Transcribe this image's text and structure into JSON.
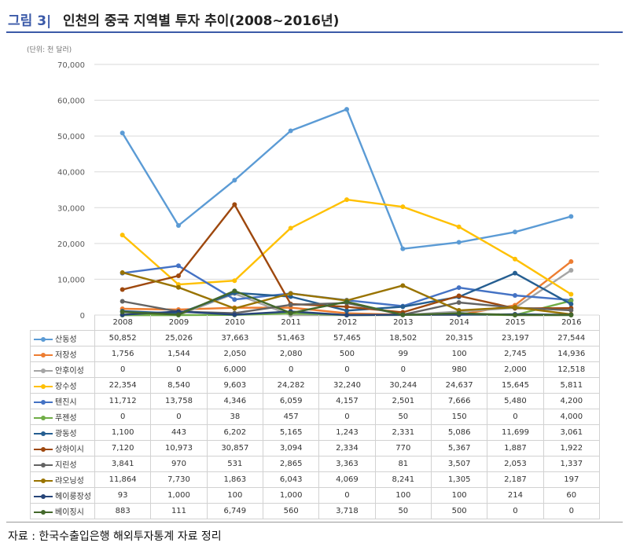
{
  "header": {
    "figure_label": "그림 3|",
    "title": "인천의 중국 지역별 투자 추이(2008~2016년)"
  },
  "unit_label": "(단위: 천 달러)",
  "source_note": "자료 : 한국수출입은행 해외투자통계 자료 정리",
  "chart_data": {
    "type": "line",
    "title": "인천의 중국 지역별 투자 추이(2008~2016년)",
    "ylabel": "(단위: 천 달러)",
    "xlabel": "",
    "ylim": [
      0,
      70000
    ],
    "yticks": [
      0,
      10000,
      20000,
      30000,
      40000,
      50000,
      60000,
      70000
    ],
    "ytick_labels": [
      "0",
      "10,000",
      "20,000",
      "30,000",
      "40,000",
      "50,000",
      "60,000",
      "70,000"
    ],
    "grid": true,
    "legend": "data-table-left",
    "categories": [
      "2008",
      "2009",
      "2010",
      "2011",
      "2012",
      "2013",
      "2014",
      "2015",
      "2016"
    ],
    "series": [
      {
        "name": "산동성",
        "color": "#5b9bd5",
        "values": [
          50852,
          25026,
          37663,
          51463,
          57465,
          18502,
          20315,
          23197,
          27544
        ],
        "labels": [
          "50,852",
          "25,026",
          "37,663",
          "51,463",
          "57,465",
          "18,502",
          "20,315",
          "23,197",
          "27,544"
        ]
      },
      {
        "name": "저장성",
        "color": "#ed7d31",
        "values": [
          1756,
          1544,
          2050,
          2080,
          500,
          99,
          100,
          2745,
          14936
        ],
        "labels": [
          "1,756",
          "1,544",
          "2,050",
          "2,080",
          "500",
          "99",
          "100",
          "2,745",
          "14,936"
        ]
      },
      {
        "name": "안후이성",
        "color": "#a5a5a5",
        "values": [
          0,
          0,
          6000,
          0,
          0,
          0,
          980,
          2000,
          12518
        ],
        "labels": [
          "0",
          "0",
          "6,000",
          "0",
          "0",
          "0",
          "980",
          "2,000",
          "12,518"
        ]
      },
      {
        "name": "장수성",
        "color": "#ffc000",
        "values": [
          22354,
          8540,
          9603,
          24282,
          32240,
          30244,
          24637,
          15645,
          5811
        ],
        "labels": [
          "22,354",
          "8,540",
          "9,603",
          "24,282",
          "32,240",
          "30,244",
          "24,637",
          "15,645",
          "5,811"
        ]
      },
      {
        "name": "텐진시",
        "color": "#4472c4",
        "values": [
          11712,
          13758,
          4346,
          6059,
          4157,
          2501,
          7666,
          5480,
          4200
        ],
        "labels": [
          "11,712",
          "13,758",
          "4,346",
          "6,059",
          "4,157",
          "2,501",
          "7,666",
          "5,480",
          "4,200"
        ]
      },
      {
        "name": "푸젠성",
        "color": "#70ad47",
        "values": [
          0,
          0,
          38,
          457,
          0,
          50,
          150,
          0,
          4000
        ],
        "labels": [
          "0",
          "0",
          "38",
          "457",
          "0",
          "50",
          "150",
          "0",
          "4,000"
        ]
      },
      {
        "name": "광동성",
        "color": "#255e91",
        "values": [
          1100,
          443,
          6202,
          5165,
          1243,
          2331,
          5086,
          11699,
          3061
        ],
        "labels": [
          "1,100",
          "443",
          "6,202",
          "5,165",
          "1,243",
          "2,331",
          "5,086",
          "11,699",
          "3,061"
        ]
      },
      {
        "name": "상하이시",
        "color": "#9e480e",
        "values": [
          7120,
          10973,
          30857,
          3094,
          2334,
          770,
          5367,
          1887,
          1922
        ],
        "labels": [
          "7,120",
          "10,973",
          "30,857",
          "3,094",
          "2,334",
          "770",
          "5,367",
          "1,887",
          "1,922"
        ]
      },
      {
        "name": "지린성",
        "color": "#636363",
        "values": [
          3841,
          970,
          531,
          2865,
          3363,
          81,
          3507,
          2053,
          1337
        ],
        "labels": [
          "3,841",
          "970",
          "531",
          "2,865",
          "3,363",
          "81",
          "3,507",
          "2,053",
          "1,337"
        ]
      },
      {
        "name": "랴오닝성",
        "color": "#997300",
        "values": [
          11864,
          7730,
          1863,
          6043,
          4069,
          8241,
          1305,
          2187,
          197
        ],
        "labels": [
          "11,864",
          "7,730",
          "1,863",
          "6,043",
          "4,069",
          "8,241",
          "1,305",
          "2,187",
          "197"
        ]
      },
      {
        "name": "헤이룽장성",
        "color": "#264478",
        "values": [
          93,
          1000,
          100,
          1000,
          0,
          100,
          100,
          214,
          60
        ],
        "labels": [
          "93",
          "1,000",
          "100",
          "1,000",
          "0",
          "100",
          "100",
          "214",
          "60"
        ]
      },
      {
        "name": "베이징시",
        "color": "#43682b",
        "values": [
          883,
          111,
          6749,
          560,
          3718,
          50,
          500,
          0,
          0
        ],
        "labels": [
          "883",
          "111",
          "6,749",
          "560",
          "3,718",
          "50",
          "500",
          "0",
          "0"
        ]
      }
    ]
  }
}
